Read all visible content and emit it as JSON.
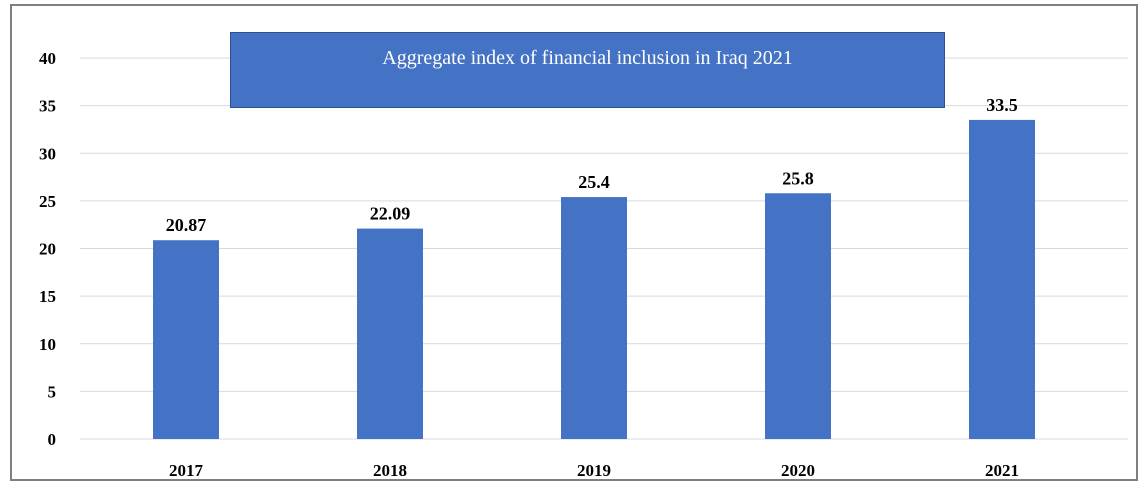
{
  "chart_data": {
    "type": "bar",
    "title": "Aggregate index of financial inclusion in  Iraq 2021",
    "categories": [
      "2017",
      "2018",
      "2019",
      "2020",
      "2021"
    ],
    "values": [
      20.87,
      22.09,
      25.4,
      25.8,
      33.5
    ],
    "data_labels": [
      "20.87",
      "22.09",
      "25.4",
      "25.8",
      "33.5"
    ],
    "xlabel": "",
    "ylabel": "",
    "ylim": [
      0,
      40
    ],
    "yticks": [
      0,
      5,
      10,
      15,
      20,
      25,
      30,
      35,
      40
    ],
    "grid": true,
    "legend": "none",
    "bar_color": "#4472c4",
    "title_box_color": "#4472c4",
    "title_text_color": "#ffffff",
    "grid_color": "#d9d9d9"
  }
}
